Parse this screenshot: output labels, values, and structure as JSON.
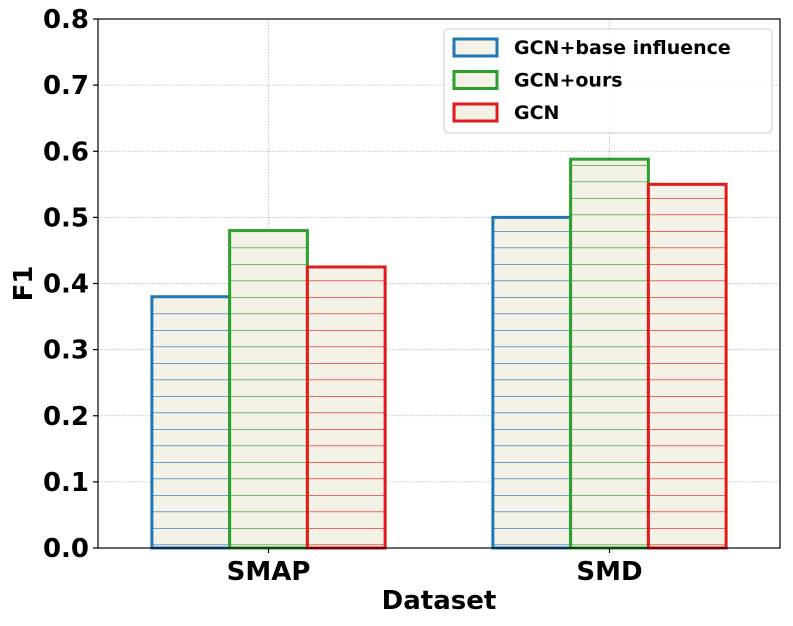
{
  "chart_data": {
    "type": "bar",
    "title": "",
    "xlabel": "Dataset",
    "ylabel": "F1",
    "categories": [
      "SMAP",
      "SMD"
    ],
    "series": [
      {
        "name": "GCN+base influence",
        "values": [
          0.38,
          0.5
        ],
        "color": "#1f77b4"
      },
      {
        "name": "GCN+ours",
        "values": [
          0.48,
          0.588
        ],
        "color": "#2ca02c"
      },
      {
        "name": "GCN",
        "values": [
          0.425,
          0.55
        ],
        "color": "#e31a1c"
      }
    ],
    "ylim": [
      0,
      0.8
    ],
    "yticks": [
      "0.0",
      "0.1",
      "0.2",
      "0.3",
      "0.4",
      "0.5",
      "0.6",
      "0.7",
      "0.8"
    ],
    "bar_fill": "#f4f1e6",
    "hatch": "horizontal",
    "grid": true,
    "legend_position": "top-right"
  }
}
